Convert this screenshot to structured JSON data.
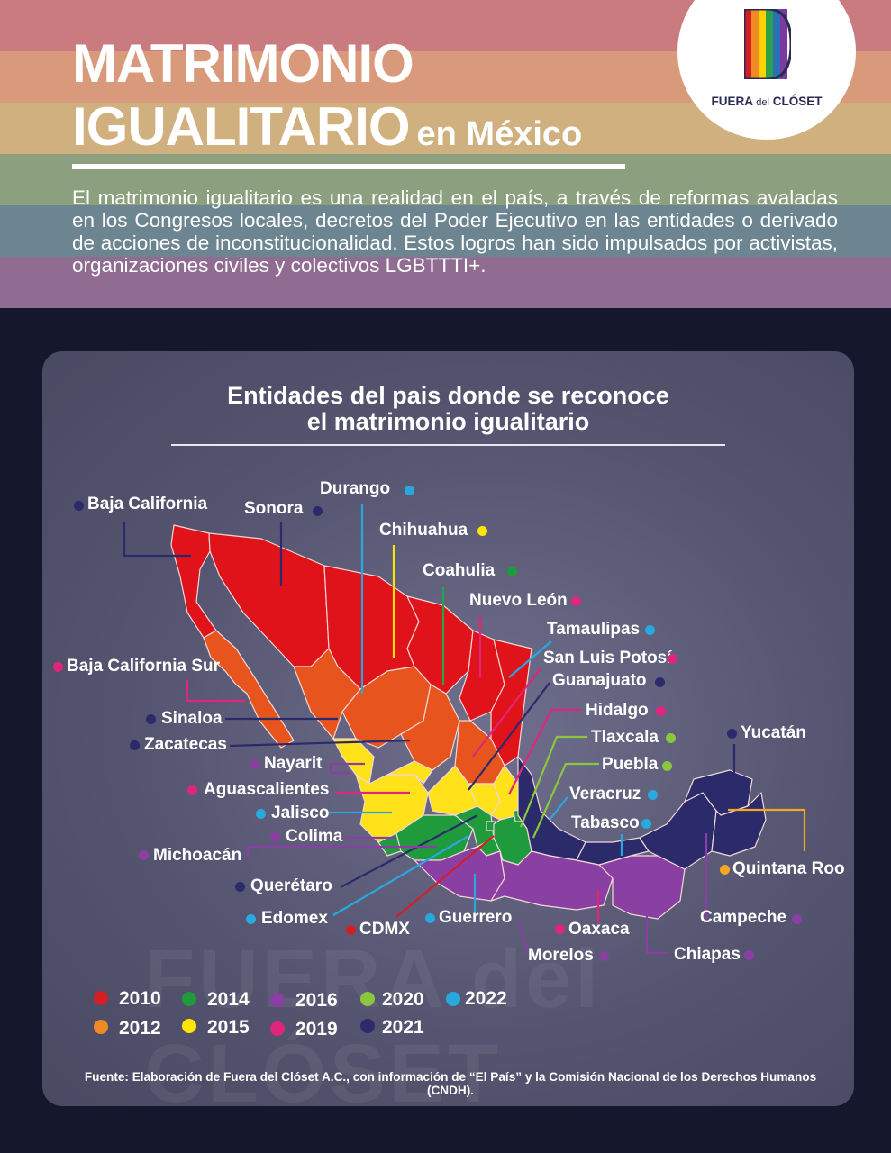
{
  "header": {
    "title_line1": "MATRIMONIO",
    "title_line2": "IGUALITARIO",
    "title_suffix": "en México",
    "intro": "El matrimonio igualitario es una realidad en el país, a través de reformas avaladas en los Congresos locales, decretos del Poder Ejecutivo en las entidades o derivado de acciones de inconstitucionalidad. Estos logros han sido impulsados por activistas, organizaciones civiles y colectivos LGBTTTI+.",
    "band_colors": [
      "#c97b7f",
      "#d99a7c",
      "#cfb07e",
      "#8c9f7e",
      "#6d8590",
      "#906b92"
    ]
  },
  "logo": {
    "text_main": "FUERA",
    "text_small": "del",
    "text_end": "CLÓSET"
  },
  "map": {
    "title_line1": "Entidades del pais donde se reconoce",
    "title_line2": "el matrimonio igualitario",
    "watermark": "FUERA del CLÓSET",
    "states": [
      {
        "name": "Baja California",
        "year": "2021"
      },
      {
        "name": "Sonora",
        "year": "2021"
      },
      {
        "name": "Durango",
        "year": "2022"
      },
      {
        "name": "Chihuahua",
        "year": "2015"
      },
      {
        "name": "Coahulia",
        "year": "2014"
      },
      {
        "name": "Nuevo León",
        "year": "2019"
      },
      {
        "name": "Tamaulipas",
        "year": "2022"
      },
      {
        "name": "San Luis Potosí",
        "year": "2019"
      },
      {
        "name": "Guanajuato",
        "year": "2021"
      },
      {
        "name": "Hidalgo",
        "year": "2019"
      },
      {
        "name": "Tlaxcala",
        "year": "2020"
      },
      {
        "name": "Puebla",
        "year": "2020"
      },
      {
        "name": "Veracruz",
        "year": "2022"
      },
      {
        "name": "Tabasco",
        "year": "2022"
      },
      {
        "name": "Yucatán",
        "year": "2021"
      },
      {
        "name": "Quintana Roo",
        "year": "2012"
      },
      {
        "name": "Campeche",
        "year": "2016"
      },
      {
        "name": "Chiapas",
        "year": "2016"
      },
      {
        "name": "Oaxaca",
        "year": "2019"
      },
      {
        "name": "Morelos",
        "year": "2016"
      },
      {
        "name": "Guerrero",
        "year": "2022"
      },
      {
        "name": "CDMX",
        "year": "2010"
      },
      {
        "name": "Edomex",
        "year": "2022"
      },
      {
        "name": "Querétaro",
        "year": "2021"
      },
      {
        "name": "Michoacán",
        "year": "2016"
      },
      {
        "name": "Colima",
        "year": "2016"
      },
      {
        "name": "Jalisco",
        "year": "2022"
      },
      {
        "name": "Aguascalientes",
        "year": "2019"
      },
      {
        "name": "Nayarit",
        "year": "2016"
      },
      {
        "name": "Zacatecas",
        "year": "2021"
      },
      {
        "name": "Sinaloa",
        "year": "2021"
      },
      {
        "name": "Baja California Sur",
        "year": "2019"
      }
    ],
    "legend": [
      {
        "year": "2010",
        "color": "#d21f26"
      },
      {
        "year": "2014",
        "color": "#1f9a3c"
      },
      {
        "year": "2016",
        "color": "#8a3fa3"
      },
      {
        "year": "2020",
        "color": "#8cc63f"
      },
      {
        "year": "2022",
        "color": "#29a8e0"
      },
      {
        "year": "2012",
        "color": "#f08a24"
      },
      {
        "year": "2015",
        "color": "#ffe600"
      },
      {
        "year": "2019",
        "color": "#e0267a"
      },
      {
        "year": "2021",
        "color": "#2b2a6b"
      }
    ],
    "source": "Fuente: Elaboración de Fuera del Clóset A.C., con información de “El País” y la Comisión Nacional de los Derechos Humanos (CNDH)."
  }
}
